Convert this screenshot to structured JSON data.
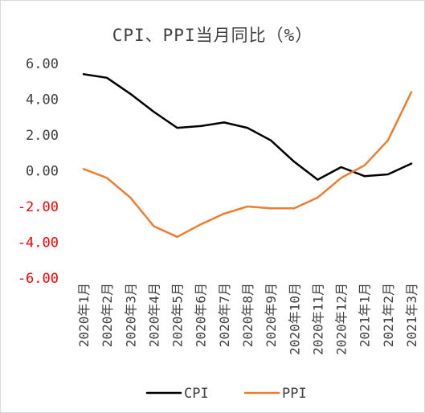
{
  "chart_data": {
    "type": "line",
    "title": "CPI、PPI当月同比（%）",
    "xlabel": "",
    "ylabel": "",
    "ylim": [
      -6,
      6
    ],
    "yticks": [
      "6.00",
      "4.00",
      "2.00",
      "0.00",
      "-2.00",
      "-4.00",
      "-6.00"
    ],
    "ytick_values": [
      6,
      4,
      2,
      0,
      -2,
      -4,
      -6
    ],
    "negative_tick_color": "#ff0000",
    "positive_tick_color": "#404040",
    "grid": false,
    "legend_position": "bottom",
    "categories": [
      "2020年1月",
      "2020年2月",
      "2020年3月",
      "2020年4月",
      "2020年5月",
      "2020年6月",
      "2020年7月",
      "2020年8月",
      "2020年9月",
      "2020年10月",
      "2020年11月",
      "2020年12月",
      "2021年1月",
      "2021年2月",
      "2021年3月"
    ],
    "series": [
      {
        "name": "CPI",
        "color": "#000000",
        "values": [
          5.4,
          5.2,
          4.3,
          3.3,
          2.4,
          2.5,
          2.7,
          2.4,
          1.7,
          0.5,
          -0.5,
          0.2,
          -0.3,
          -0.2,
          0.4
        ]
      },
      {
        "name": "PPI",
        "color": "#ed7d31",
        "values": [
          0.1,
          -0.4,
          -1.5,
          -3.1,
          -3.7,
          -3.0,
          -2.4,
          -2.0,
          -2.1,
          -2.1,
          -1.5,
          -0.4,
          0.3,
          1.7,
          4.4
        ]
      }
    ]
  }
}
